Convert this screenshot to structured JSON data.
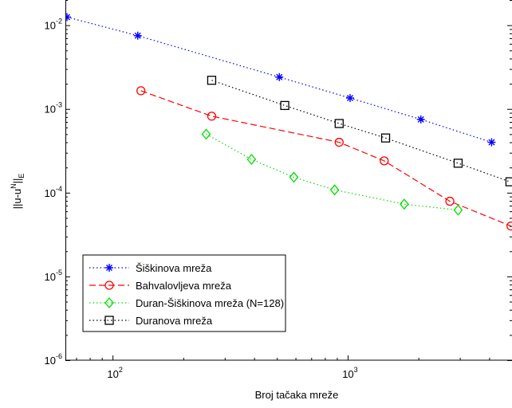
{
  "chart_data": {
    "type": "line",
    "xlabel": "Broj tačaka mreže",
    "ylabel": {
      "base": "||u-u",
      "sup": "N",
      "mid": "||",
      "sub": "E"
    },
    "x_scale": "log",
    "y_scale": "log",
    "xlim": [
      63,
      5000
    ],
    "ylim": [
      1e-06,
      0.02
    ],
    "x_ticks": [
      {
        "value": 100,
        "base": "10",
        "exp": "2"
      },
      {
        "value": 1000,
        "base": "10",
        "exp": "3"
      }
    ],
    "y_ticks": [
      {
        "value": 0.01,
        "base": "10",
        "exp": "-2"
      },
      {
        "value": 0.001,
        "base": "10",
        "exp": "-3"
      },
      {
        "value": 0.0001,
        "base": "10",
        "exp": "-4"
      },
      {
        "value": 1e-05,
        "base": "10",
        "exp": "-5"
      },
      {
        "value": 1e-06,
        "base": "10",
        "exp": "-6"
      }
    ],
    "grid": false,
    "legend_position": "bottom-left",
    "series": [
      {
        "name": "Šiškinova mreža",
        "color": "#0000ff",
        "line": "dotted",
        "marker": "asterisk",
        "points": [
          [
            64,
            0.0125
          ],
          [
            128,
            0.0075
          ],
          [
            512,
            0.0024
          ],
          [
            1024,
            0.00135
          ],
          [
            2048,
            0.00075
          ],
          [
            4096,
            0.0004
          ]
        ]
      },
      {
        "name": "Bahvalovljeva mreža",
        "color": "#ff0000",
        "line": "dashed",
        "marker": "circle",
        "points": [
          [
            132,
            0.00165
          ],
          [
            264,
            0.00082
          ],
          [
            920,
            0.0004
          ],
          [
            1430,
            0.00024
          ],
          [
            2720,
            7.9e-05
          ],
          [
            4950,
            4e-05
          ]
        ]
      },
      {
        "name": "Duran-Šiškinova mreža (N=128)",
        "color": "#00dd00",
        "line": "dotted",
        "marker": "diamond",
        "points": [
          [
            250,
            0.0005
          ],
          [
            390,
            0.00025
          ],
          [
            590,
            0.000153
          ],
          [
            880,
            0.000108
          ],
          [
            1740,
            7.3e-05
          ],
          [
            2950,
            6.2e-05
          ]
        ]
      },
      {
        "name": "Duranova mreža",
        "color": "#000000",
        "line": "dotted",
        "marker": "square",
        "points": [
          [
            264,
            0.0022
          ],
          [
            540,
            0.0011
          ],
          [
            920,
            0.00067
          ],
          [
            1450,
            0.00045
          ],
          [
            2950,
            0.000225
          ],
          [
            4900,
            0.000135
          ]
        ]
      }
    ]
  }
}
